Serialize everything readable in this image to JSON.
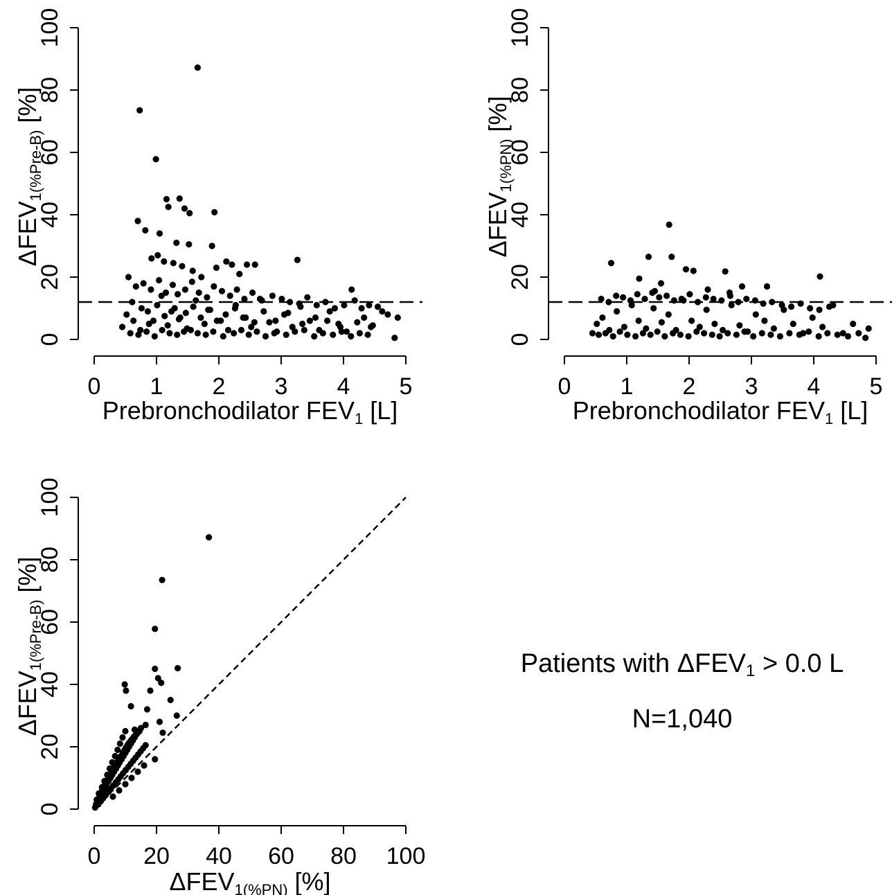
{
  "chart_data": [
    {
      "id": "top-left",
      "type": "scatter",
      "title": "",
      "xlabel": {
        "main": "Prebronchodilator FEV",
        "sub": "1",
        "unit": " [L]"
      },
      "ylabel": {
        "main": "ΔFEV",
        "sub": "1(%Pre-B)",
        "unit": " [%]"
      },
      "xlim": [
        0,
        5
      ],
      "ylim": [
        0,
        100
      ],
      "xticks": [
        "0",
        "1",
        "2",
        "3",
        "4",
        "5"
      ],
      "yticks": [
        "0",
        "20",
        "40",
        "60",
        "80",
        "100"
      ],
      "reference_line": {
        "type": "horizontal",
        "y": 12,
        "style": "dashed"
      },
      "points": {
        "x": [
          1.66,
          0.73,
          0.99,
          1.16,
          1.37,
          1.45,
          1.53,
          1.93,
          1.19,
          0.7,
          1.05,
          0.82,
          1.32,
          1.52,
          1.89,
          0.92,
          1.02,
          1.12,
          1.27,
          1.41,
          1.58,
          1.72,
          1.96,
          2.12,
          2.21,
          2.33,
          2.45,
          2.58,
          3.26,
          4.13,
          0.45,
          0.52,
          0.61,
          0.74,
          0.86,
          0.95,
          1.08,
          1.18,
          1.29,
          1.38,
          1.49,
          1.63,
          1.77,
          1.86,
          2.03,
          2.15,
          2.27,
          2.39,
          2.52,
          2.66,
          2.81,
          2.93,
          3.05,
          3.18,
          3.31,
          3.46,
          3.61,
          3.78,
          3.92,
          4.05,
          4.33,
          4.47,
          4.62,
          4.87,
          0.55,
          0.67,
          0.79,
          0.91,
          1.04,
          1.15,
          1.26,
          1.34,
          1.46,
          1.57,
          1.68,
          1.81,
          1.92,
          2.05,
          2.18,
          2.29,
          2.41,
          2.54,
          2.69,
          2.86,
          3.01,
          3.14,
          3.29,
          3.42,
          3.57,
          3.71,
          3.86,
          4.01,
          4.18,
          4.29,
          4.41,
          4.55,
          4.71,
          4.82,
          0.58,
          0.71,
          0.84,
          0.97,
          1.09,
          1.21,
          1.33,
          1.44,
          1.55,
          1.66,
          1.79,
          1.91,
          2.07,
          2.24,
          2.36,
          2.48,
          2.61,
          2.75,
          2.89,
          3.08,
          3.22,
          3.37,
          3.53,
          3.67,
          3.83,
          3.97,
          4.12,
          4.26,
          4.39,
          0.63,
          0.76,
          0.88,
          1.01,
          1.13,
          1.24,
          1.36,
          1.47,
          1.59,
          1.71,
          1.83,
          1.97,
          2.11,
          2.26,
          2.43,
          2.57,
          2.72,
          2.91,
          3.11,
          3.34,
          3.55,
          3.74,
          3.95,
          4.22,
          4.44
        ],
        "y": [
          87.2,
          73.5,
          57.8,
          45.0,
          45.2,
          42.0,
          40.5,
          40.8,
          42.5,
          38.0,
          34.0,
          35.0,
          31.0,
          30.5,
          30.0,
          26.0,
          27.0,
          25.0,
          24.5,
          23.5,
          22.0,
          20.0,
          23.0,
          25.0,
          24.0,
          21.0,
          24.0,
          24.0,
          25.5,
          16.0,
          4.0,
          8.0,
          12.0,
          3.0,
          9.0,
          6.0,
          14.0,
          4.5,
          10.0,
          7.0,
          3.5,
          12.5,
          5.0,
          9.5,
          6.0,
          3.0,
          11.0,
          7.0,
          4.0,
          13.0,
          5.5,
          2.5,
          8.0,
          4.0,
          10.5,
          6.0,
          3.0,
          9.0,
          5.0,
          2.5,
          7.0,
          4.5,
          9.0,
          7.0,
          20.0,
          17.0,
          18.0,
          16.0,
          19.0,
          15.0,
          17.5,
          14.5,
          16.0,
          18.5,
          15.0,
          13.5,
          17.0,
          15.5,
          14.0,
          16.0,
          13.0,
          15.0,
          12.5,
          14.0,
          13.0,
          12.0,
          11.5,
          13.5,
          11.0,
          12.0,
          10.0,
          11.0,
          12.5,
          10.0,
          11.0,
          10.5,
          8.0,
          0.5,
          2.0,
          1.5,
          2.5,
          1.0,
          3.0,
          2.0,
          1.5,
          2.5,
          3.0,
          2.0,
          1.5,
          2.5,
          1.0,
          2.0,
          3.0,
          1.5,
          2.5,
          1.0,
          2.0,
          1.5,
          2.5,
          3.0,
          1.0,
          2.0,
          1.5,
          2.5,
          1.0,
          2.0,
          1.5,
          6.0,
          10.0,
          5.0,
          11.0,
          7.5,
          9.0,
          6.5,
          8.5,
          10.5,
          7.0,
          9.5,
          6.0,
          8.0,
          10.0,
          7.0,
          5.5,
          9.0,
          6.0,
          8.5,
          5.0,
          7.0,
          6.0,
          4.0,
          5.5,
          4.0
        ]
      }
    },
    {
      "id": "top-right",
      "type": "scatter",
      "title": "",
      "xlabel": {
        "main": "Prebronchodilator FEV",
        "sub": "1",
        "unit": " [L]"
      },
      "ylabel": {
        "main": "ΔFEV",
        "sub": "1(%PN)",
        "unit": " [%]"
      },
      "xlim": [
        0,
        5
      ],
      "ylim": [
        0,
        100
      ],
      "xticks": [
        "0",
        "1",
        "2",
        "3",
        "4",
        "5"
      ],
      "yticks": [
        "0",
        "20",
        "40",
        "60",
        "80",
        "100"
      ],
      "reference_line": {
        "type": "horizontal",
        "y": 12,
        "style": "dashed"
      },
      "points": {
        "x": [
          1.68,
          1.35,
          1.72,
          2.07,
          2.58,
          0.75,
          1.95,
          1.2,
          2.85,
          3.25,
          4.1,
          1.55,
          1.45,
          2.3,
          2.65,
          0.45,
          0.52,
          0.61,
          0.72,
          0.84,
          0.96,
          1.08,
          1.19,
          1.31,
          1.43,
          1.56,
          1.67,
          1.79,
          1.91,
          2.04,
          2.17,
          2.28,
          2.41,
          2.54,
          2.68,
          2.81,
          2.94,
          3.07,
          3.21,
          3.36,
          3.52,
          3.67,
          3.83,
          3.98,
          4.14,
          4.31,
          4.47,
          4.63,
          4.83,
          0.55,
          0.66,
          0.78,
          0.89,
          1.01,
          1.14,
          1.26,
          1.38,
          1.49,
          1.61,
          1.74,
          1.86,
          1.99,
          2.12,
          2.24,
          2.37,
          2.49,
          2.62,
          2.76,
          2.89,
          3.03,
          3.17,
          3.31,
          3.46,
          3.61,
          3.77,
          3.92,
          4.08,
          4.22,
          4.38,
          4.55,
          4.72,
          4.88,
          0.59,
          0.71,
          0.83,
          0.94,
          1.06,
          1.17,
          1.29,
          1.41,
          1.52,
          1.64,
          1.76,
          1.88,
          2.01,
          2.14,
          2.27,
          2.39,
          2.52,
          2.66,
          2.79,
          2.92,
          3.06,
          3.19,
          3.33,
          3.49,
          3.64,
          3.79,
          3.94,
          4.09,
          4.25
        ],
        "y": [
          36.8,
          26.5,
          26.5,
          22.0,
          21.8,
          24.5,
          22.5,
          19.5,
          17.0,
          17.0,
          20.2,
          18.0,
          15.5,
          16.0,
          15.0,
          2.0,
          5.0,
          7.0,
          3.0,
          9.0,
          4.0,
          11.0,
          6.0,
          3.5,
          10.0,
          5.5,
          8.0,
          3.0,
          12.5,
          6.0,
          4.0,
          9.5,
          5.0,
          3.0,
          11.0,
          4.5,
          2.5,
          8.0,
          6.0,
          3.5,
          9.5,
          5.0,
          2.0,
          7.0,
          4.0,
          11.0,
          2.0,
          5.0,
          0.5,
          1.5,
          2.0,
          1.0,
          2.5,
          1.5,
          1.0,
          2.0,
          1.5,
          2.5,
          1.0,
          2.0,
          1.5,
          1.0,
          2.5,
          2.0,
          1.5,
          1.0,
          2.0,
          1.5,
          2.5,
          1.0,
          2.0,
          1.5,
          1.0,
          2.0,
          1.5,
          2.5,
          1.0,
          2.0,
          1.5,
          1.0,
          2.0,
          3.5,
          13.0,
          12.0,
          14.0,
          13.5,
          12.5,
          14.5,
          13.0,
          15.0,
          13.5,
          14.0,
          12.5,
          13.0,
          14.5,
          12.0,
          13.5,
          13.0,
          12.5,
          14.0,
          12.0,
          13.0,
          12.5,
          11.5,
          12.0,
          11.0,
          10.5,
          11.5,
          10.0,
          9.5,
          10.5
        ]
      }
    },
    {
      "id": "bottom-left",
      "type": "scatter",
      "title": "",
      "xlabel": {
        "main": "ΔFEV",
        "sub": "1(%PN)",
        "unit": " [%]"
      },
      "ylabel": {
        "main": "ΔFEV",
        "sub": "1(%Pre-B)",
        "unit": " [%]"
      },
      "xlim": [
        0,
        100
      ],
      "ylim": [
        0,
        100
      ],
      "xticks": [
        "0",
        "20",
        "40",
        "60",
        "80",
        "100"
      ],
      "yticks": [
        "0",
        "20",
        "40",
        "60",
        "80",
        "100"
      ],
      "reference_line": {
        "type": "identity",
        "from": [
          0,
          0
        ],
        "to": [
          100,
          100
        ],
        "style": "dotted"
      },
      "points": {
        "x": [
          36.8,
          21.8,
          19.5,
          26.8,
          19.5,
          20.5,
          21.5,
          24.5,
          9.8,
          10.2,
          18.0,
          11.8,
          17.0,
          26.5,
          21.0,
          16.5,
          13.0,
          22.0,
          19.5,
          0.3,
          0.6,
          0.9,
          1.1,
          1.4,
          1.7,
          2.0,
          2.3,
          2.6,
          2.9,
          3.2,
          3.5,
          3.8,
          4.1,
          4.4,
          4.7,
          5.0,
          5.3,
          5.6,
          5.9,
          6.2,
          6.5,
          6.8,
          7.1,
          7.4,
          7.7,
          8.0,
          8.3,
          8.6,
          8.9,
          9.2,
          9.5,
          9.8,
          10.1,
          10.4,
          10.7,
          11.0,
          11.4,
          11.8,
          12.2,
          12.6,
          13.0,
          13.5,
          14.0,
          14.5,
          15.0,
          1.0,
          1.6,
          2.2,
          2.8,
          3.4,
          4.0,
          4.6,
          5.2,
          5.8,
          6.4,
          7.0,
          7.6,
          8.2,
          8.8,
          9.4,
          10.0,
          10.6,
          11.2,
          11.8,
          12.4,
          13.0,
          13.6,
          1.3,
          2.1,
          2.9,
          3.7,
          4.5,
          5.3,
          6.1,
          6.9,
          7.7,
          8.5,
          9.3,
          10.1,
          10.9,
          11.7,
          12.5,
          13.3,
          14.1,
          14.9,
          15.7,
          16.5,
          0.8,
          1.5,
          2.5,
          3.3,
          4.2,
          5.0,
          5.8,
          6.7,
          7.5,
          8.3,
          9.1,
          10.0,
          6.0,
          8.0,
          10.0,
          12.0,
          14.0,
          16.0
        ],
        "y": [
          87.2,
          73.5,
          57.8,
          45.2,
          45.0,
          42.0,
          40.5,
          35.0,
          40.0,
          38.0,
          38.0,
          33.0,
          32.0,
          30.0,
          28.0,
          27.0,
          25.5,
          24.5,
          16.0,
          0.5,
          1.5,
          2.0,
          3.0,
          3.0,
          4.0,
          4.5,
          5.0,
          6.0,
          6.5,
          7.0,
          8.0,
          8.0,
          9.0,
          9.5,
          10.0,
          10.5,
          11.0,
          12.0,
          12.0,
          13.0,
          13.5,
          14.0,
          14.5,
          15.0,
          15.5,
          16.0,
          16.5,
          17.0,
          17.0,
          18.0,
          18.5,
          19.0,
          19.5,
          20.0,
          20.5,
          21.0,
          21.5,
          22.0,
          22.5,
          23.0,
          23.5,
          24.0,
          24.5,
          25.0,
          26.0,
          2.0,
          3.5,
          4.5,
          6.0,
          7.0,
          8.0,
          9.0,
          10.0,
          11.0,
          12.0,
          13.0,
          14.0,
          15.0,
          16.0,
          17.0,
          18.0,
          19.0,
          20.0,
          21.0,
          22.0,
          23.0,
          24.0,
          1.5,
          2.5,
          3.5,
          4.5,
          5.5,
          6.5,
          7.5,
          8.5,
          9.5,
          10.5,
          11.5,
          12.5,
          13.5,
          14.5,
          15.5,
          16.5,
          17.5,
          18.5,
          19.5,
          20.5,
          3.0,
          5.0,
          7.0,
          9.0,
          11.0,
          13.0,
          15.0,
          17.0,
          19.0,
          21.0,
          23.0,
          25.0,
          4.0,
          6.0,
          8.0,
          10.0,
          12.0,
          14.0
        ]
      }
    }
  ],
  "annotation": {
    "line1_main": "Patients with ΔFEV",
    "line1_sub": "1",
    "line1_rest": " > 0.0 L",
    "line2": "N=1,040"
  }
}
